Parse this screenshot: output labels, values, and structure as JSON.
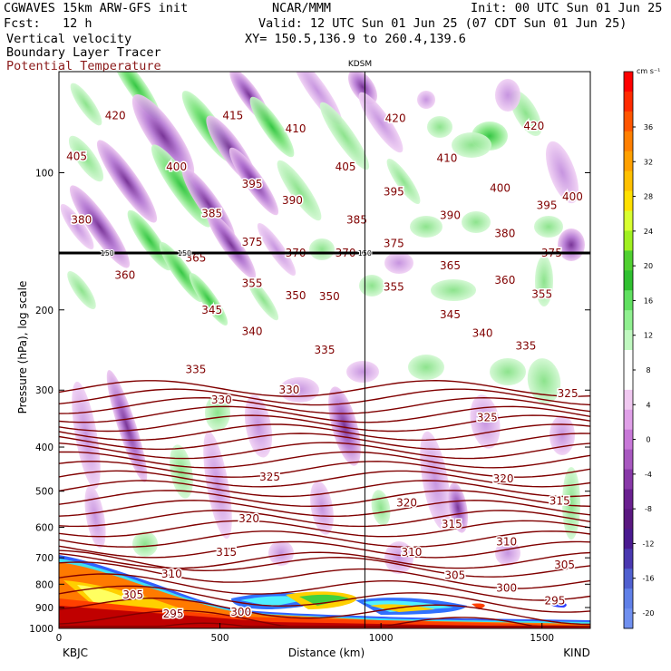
{
  "header": {
    "model": "CGWAVES 15km ARW-GFS init",
    "org": "NCAR/MMM",
    "init": "Init: 00 UTC Sun 01 Jun 25",
    "fcst": "Fcst:   12 h",
    "valid": "Valid: 12 UTC Sun 01 Jun 25 (07 CDT Sun 01 Jun 25)",
    "field1": "Vertical velocity",
    "xy": "XY= 150.5,136.9 to 260.4,139.6",
    "field2": "Boundary Layer Tracer",
    "field3": "Potential Temperature",
    "field3_color": "#8b1a1a"
  },
  "chart_data": {
    "type": "heatmap",
    "ylabel": "Pressure (hPa), log scale",
    "xlabel": "Distance (km)",
    "xlim": [
      0,
      1650
    ],
    "ylim": [
      1000,
      60
    ],
    "x_ticks": [
      "0",
      "500",
      "1000",
      "1500"
    ],
    "y_ticks": [
      "100",
      "200",
      "300",
      "400",
      "500",
      "600",
      "700",
      "800",
      "900",
      "1000"
    ],
    "y_tick_values": [
      100,
      200,
      300,
      400,
      500,
      600,
      700,
      800,
      900,
      1000
    ],
    "left_station": "KBJC",
    "right_station": "KIND",
    "mid_station": "KDSM",
    "mid_station_x": 950,
    "tropopause_pressure": 150,
    "tropopause_label": "150",
    "colorbar_unit": "cm s⁻¹",
    "colorbar_labels": [
      "36",
      "32",
      "28",
      "24",
      "20",
      "16",
      "12",
      "8",
      "4",
      "0",
      "-4",
      "-8",
      "-12",
      "-16",
      "-20"
    ],
    "colorbar_colors": [
      "#ff0000",
      "#ff2a00",
      "#ff5500",
      "#ff7f00",
      "#ffa000",
      "#ffc000",
      "#ffe000",
      "#d8ff30",
      "#a0f020",
      "#50d030",
      "#30c030",
      "#60e060",
      "#90f090",
      "#c0f8c0",
      "#ffffff",
      "#ffffff",
      "#f0c8f0",
      "#e0a0e8",
      "#c878d8",
      "#a858c0",
      "#8838a8",
      "#6a2090",
      "#5a1880",
      "#4a1a90",
      "#4a38b0",
      "#5060d0",
      "#6080e8",
      "#7090f0"
    ],
    "theta_color": "#800000",
    "theta_labels": [
      {
        "x": 175,
        "p": 75,
        "v": "420"
      },
      {
        "x": 540,
        "p": 75,
        "v": "415"
      },
      {
        "x": 735,
        "p": 80,
        "v": "410"
      },
      {
        "x": 1045,
        "p": 76,
        "v": "420"
      },
      {
        "x": 1475,
        "p": 79,
        "v": "420"
      },
      {
        "x": 55,
        "p": 92,
        "v": "405"
      },
      {
        "x": 365,
        "p": 97,
        "v": "400"
      },
      {
        "x": 600,
        "p": 106,
        "v": "395"
      },
      {
        "x": 890,
        "p": 97,
        "v": "405"
      },
      {
        "x": 1205,
        "p": 93,
        "v": "410"
      },
      {
        "x": 1370,
        "p": 108,
        "v": "400"
      },
      {
        "x": 725,
        "p": 115,
        "v": "390"
      },
      {
        "x": 1040,
        "p": 110,
        "v": "395"
      },
      {
        "x": 1515,
        "p": 118,
        "v": "395"
      },
      {
        "x": 1595,
        "p": 113,
        "v": "400"
      },
      {
        "x": 70,
        "p": 127,
        "v": "380"
      },
      {
        "x": 475,
        "p": 123,
        "v": "385"
      },
      {
        "x": 925,
        "p": 127,
        "v": "385"
      },
      {
        "x": 1215,
        "p": 124,
        "v": "390"
      },
      {
        "x": 1385,
        "p": 136,
        "v": "380"
      },
      {
        "x": 600,
        "p": 142,
        "v": "375"
      },
      {
        "x": 1040,
        "p": 143,
        "v": "375"
      },
      {
        "x": 1530,
        "p": 150,
        "v": "375"
      },
      {
        "x": 735,
        "p": 150,
        "v": "370"
      },
      {
        "x": 890,
        "p": 150,
        "v": "370"
      },
      {
        "x": 425,
        "p": 154,
        "v": "365"
      },
      {
        "x": 1215,
        "p": 160,
        "v": "365"
      },
      {
        "x": 205,
        "p": 168,
        "v": "360"
      },
      {
        "x": 1385,
        "p": 172,
        "v": "360"
      },
      {
        "x": 600,
        "p": 175,
        "v": "355"
      },
      {
        "x": 1040,
        "p": 178,
        "v": "355"
      },
      {
        "x": 1500,
        "p": 185,
        "v": "355"
      },
      {
        "x": 735,
        "p": 186,
        "v": "350"
      },
      {
        "x": 840,
        "p": 187,
        "v": "350"
      },
      {
        "x": 475,
        "p": 200,
        "v": "345"
      },
      {
        "x": 1215,
        "p": 205,
        "v": "345"
      },
      {
        "x": 600,
        "p": 223,
        "v": "340"
      },
      {
        "x": 1315,
        "p": 225,
        "v": "340"
      },
      {
        "x": 825,
        "p": 245,
        "v": "335"
      },
      {
        "x": 425,
        "p": 270,
        "v": "335"
      },
      {
        "x": 1450,
        "p": 240,
        "v": "335"
      },
      {
        "x": 715,
        "p": 300,
        "v": "330"
      },
      {
        "x": 505,
        "p": 315,
        "v": "330"
      },
      {
        "x": 1580,
        "p": 305,
        "v": "325"
      },
      {
        "x": 1330,
        "p": 345,
        "v": "325"
      },
      {
        "x": 655,
        "p": 465,
        "v": "325"
      },
      {
        "x": 1380,
        "p": 470,
        "v": "320"
      },
      {
        "x": 1080,
        "p": 530,
        "v": "320"
      },
      {
        "x": 590,
        "p": 575,
        "v": "320"
      },
      {
        "x": 1555,
        "p": 525,
        "v": "315"
      },
      {
        "x": 1220,
        "p": 590,
        "v": "315"
      },
      {
        "x": 520,
        "p": 680,
        "v": "315"
      },
      {
        "x": 1390,
        "p": 645,
        "v": "310"
      },
      {
        "x": 1095,
        "p": 680,
        "v": "310"
      },
      {
        "x": 350,
        "p": 760,
        "v": "310"
      },
      {
        "x": 1570,
        "p": 725,
        "v": "305"
      },
      {
        "x": 1230,
        "p": 765,
        "v": "305"
      },
      {
        "x": 230,
        "p": 845,
        "v": "305"
      },
      {
        "x": 1390,
        "p": 815,
        "v": "300"
      },
      {
        "x": 565,
        "p": 920,
        "v": "300"
      },
      {
        "x": 1540,
        "p": 870,
        "v": "295"
      },
      {
        "x": 355,
        "p": 930,
        "v": "295"
      }
    ]
  }
}
